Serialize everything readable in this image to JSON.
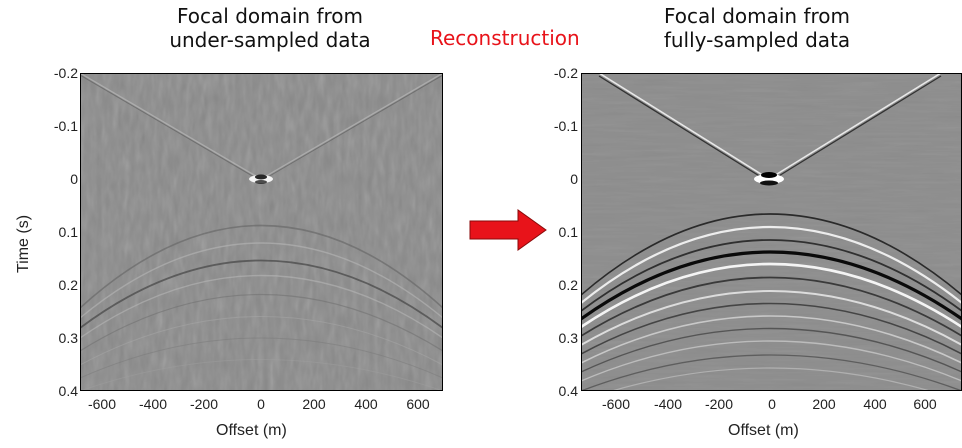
{
  "left_panel": {
    "title_line1": "Focal domain from",
    "title_line2": "under-sampled data",
    "ylabel": "Time (s)",
    "xlabel": "Offset (m)",
    "yticks": [
      "-0.2",
      "-0.1",
      "0",
      "0.1",
      "0.2",
      "0.3",
      "0.4"
    ],
    "xticks": [
      "-600",
      "-400",
      "-200",
      "0",
      "200",
      "400",
      "600"
    ]
  },
  "middle": {
    "label": "Reconstruction",
    "arrow_color": "#e8131a"
  },
  "right_panel": {
    "title_line1": "Focal domain from",
    "title_line2": "fully-sampled data",
    "xlabel": "Offset (m)",
    "yticks": [
      "-0.2",
      "-0.1",
      "0",
      "0.1",
      "0.2",
      "0.3",
      "0.4"
    ],
    "xticks": [
      "-600",
      "-400",
      "-200",
      "0",
      "200",
      "400",
      "600"
    ]
  },
  "colors": {
    "background_gray": "#8a8a8a",
    "title_text": "#111111",
    "accent_red": "#e8131a"
  }
}
